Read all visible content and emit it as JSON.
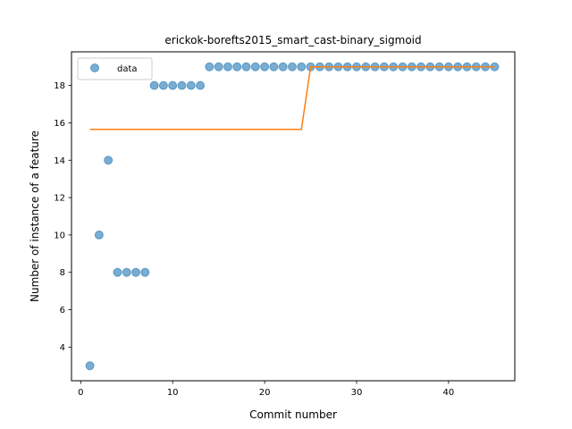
{
  "chart_data": {
    "type": "scatter",
    "title": "erickok-borefts2015_smart_cast-binary_sigmoid",
    "xlabel": "Commit number",
    "ylabel": "Number of instance of a feature",
    "xlim": [
      -1,
      47.2
    ],
    "ylim": [
      2.2,
      19.8
    ],
    "xticks": [
      0,
      10,
      20,
      30,
      40
    ],
    "yticks": [
      4,
      6,
      8,
      10,
      12,
      14,
      16,
      18
    ],
    "grid": false,
    "legend": {
      "placement": "top-left",
      "entries": [
        "data"
      ]
    },
    "series": [
      {
        "name": "data",
        "kind": "scatter",
        "color": "#1f77b4",
        "x": [
          1,
          2,
          3,
          4,
          5,
          6,
          7,
          8,
          9,
          10,
          11,
          12,
          13,
          14,
          15,
          16,
          17,
          18,
          19,
          20,
          21,
          22,
          23,
          24,
          25,
          26,
          27,
          28,
          29,
          30,
          31,
          32,
          33,
          34,
          35,
          36,
          37,
          38,
          39,
          40,
          41,
          42,
          43,
          44,
          45
        ],
        "y": [
          3,
          10,
          14,
          8,
          8,
          8,
          8,
          18,
          18,
          18,
          18,
          18,
          18,
          19,
          19,
          19,
          19,
          19,
          19,
          19,
          19,
          19,
          19,
          19,
          19,
          19,
          19,
          19,
          19,
          19,
          19,
          19,
          19,
          19,
          19,
          19,
          19,
          19,
          19,
          19,
          19,
          19,
          19,
          19,
          19
        ]
      },
      {
        "kind": "line",
        "color": "#ff7f0e",
        "x": [
          1,
          24,
          25,
          45
        ],
        "y": [
          15.65,
          15.65,
          19,
          19
        ]
      }
    ]
  }
}
